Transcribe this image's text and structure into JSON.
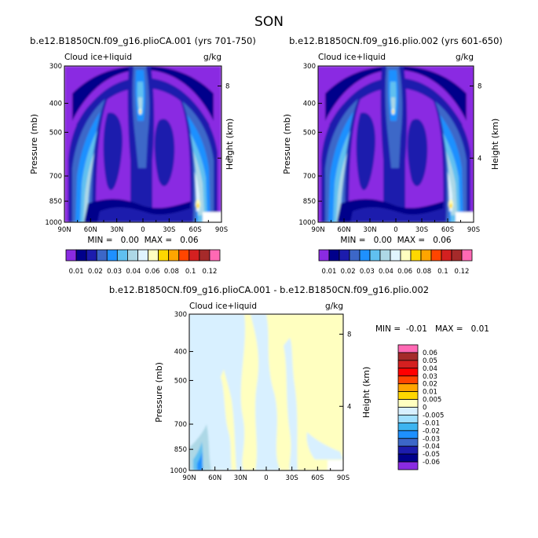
{
  "figure_title": "SON",
  "chart_data": [
    {
      "type": "heatmap",
      "title": "b.e12.B1850CN.f09_g16.plioCA.001 (yrs 701-750)",
      "left_label": "Cloud ice+liquid",
      "units": "g/kg",
      "xlabel": "",
      "ylabel": "Pressure (mb)",
      "right_axis_label": "Height (km)",
      "x_tick_labels": [
        "90N",
        "60N",
        "30N",
        "0",
        "30S",
        "60S",
        "90S"
      ],
      "y_tick_labels": [
        "300",
        "400",
        "500",
        "700",
        "850",
        "1000"
      ],
      "y_ticks": [
        300,
        400,
        500,
        700,
        850,
        1000
      ],
      "ylim": [
        1000,
        300
      ],
      "xlim": [
        90,
        -90
      ],
      "right_ticks": [
        {
          "label": "8",
          "pressure": 350
        },
        {
          "label": "4",
          "pressure": 610
        }
      ],
      "min_max_text": "MIN =   0.00  MAX =   0.06",
      "min": 0.0,
      "max": 0.06,
      "colorbar_labels": [
        "0.01",
        "0.02",
        "0.03",
        "0.04",
        "0.06",
        "0.08",
        "0.1",
        "0.12"
      ],
      "colorbar_colors": [
        "#8a2be2",
        "#00008b",
        "#1c1cad",
        "#3c67c8",
        "#1e90ff",
        "#60c0f0",
        "#add8e6",
        "#e0f4ff",
        "#ffffc0",
        "#ffd700",
        "#ffa500",
        "#ff4500",
        "#d42020",
        "#a52a2a",
        "#ff69b4"
      ]
    },
    {
      "type": "heatmap",
      "title": "b.e12.B1850CN.f09_g16.plio.002 (yrs 601-650)",
      "left_label": "Cloud ice+liquid",
      "units": "g/kg",
      "xlabel": "",
      "ylabel": "Pressure (mb)",
      "right_axis_label": "Height (km)",
      "x_tick_labels": [
        "90N",
        "60N",
        "30N",
        "0",
        "30S",
        "60S",
        "90S"
      ],
      "y_tick_labels": [
        "300",
        "400",
        "500",
        "700",
        "850",
        "1000"
      ],
      "y_ticks": [
        300,
        400,
        500,
        700,
        850,
        1000
      ],
      "ylim": [
        1000,
        300
      ],
      "xlim": [
        90,
        -90
      ],
      "right_ticks": [
        {
          "label": "8",
          "pressure": 350
        },
        {
          "label": "4",
          "pressure": 610
        }
      ],
      "min_max_text": "MIN =   0.00  MAX =   0.06",
      "min": 0.0,
      "max": 0.06,
      "colorbar_labels": [
        "0.01",
        "0.02",
        "0.03",
        "0.04",
        "0.06",
        "0.08",
        "0.1",
        "0.12"
      ],
      "colorbar_colors": [
        "#8a2be2",
        "#00008b",
        "#1c1cad",
        "#3c67c8",
        "#1e90ff",
        "#60c0f0",
        "#add8e6",
        "#e0f4ff",
        "#ffffc0",
        "#ffd700",
        "#ffa500",
        "#ff4500",
        "#d42020",
        "#a52a2a",
        "#ff69b4"
      ]
    },
    {
      "type": "heatmap",
      "title": "b.e12.B1850CN.f09_g16.plioCA.001 - b.e12.B1850CN.f09_g16.plio.002",
      "left_label": "Cloud ice+liquid",
      "units": "g/kg",
      "xlabel": "",
      "ylabel": "Pressure (mb)",
      "right_axis_label": "Height (km)",
      "x_tick_labels": [
        "90N",
        "60N",
        "30N",
        "0",
        "30S",
        "60S",
        "90S"
      ],
      "y_tick_labels": [
        "300",
        "400",
        "500",
        "700",
        "850",
        "1000"
      ],
      "y_ticks": [
        300,
        400,
        500,
        700,
        850,
        1000
      ],
      "ylim": [
        1000,
        300
      ],
      "xlim": [
        90,
        -90
      ],
      "right_ticks": [
        {
          "label": "8",
          "pressure": 350
        },
        {
          "label": "4",
          "pressure": 610
        }
      ],
      "min_max_text": "MIN =  -0.01   MAX =   0.01",
      "min": -0.01,
      "max": 0.01,
      "colorbar_labels": [
        "0.06",
        "0.05",
        "0.04",
        "0.03",
        "0.02",
        "0.01",
        "0.005",
        "0",
        "-0.005",
        "-0.01",
        "-0.02",
        "-0.03",
        "-0.04",
        "-0.05",
        "-0.06"
      ],
      "colorbar_colors": [
        "#ff69b4",
        "#a52a2a",
        "#d42020",
        "#ff0000",
        "#ff4500",
        "#ffa500",
        "#ffd700",
        "#ffffc0",
        "#d8f0ff",
        "#a0e0ff",
        "#3cb4f0",
        "#1e90ff",
        "#3c67c8",
        "#1c1cad",
        "#00008b",
        "#8a2be2"
      ]
    }
  ]
}
